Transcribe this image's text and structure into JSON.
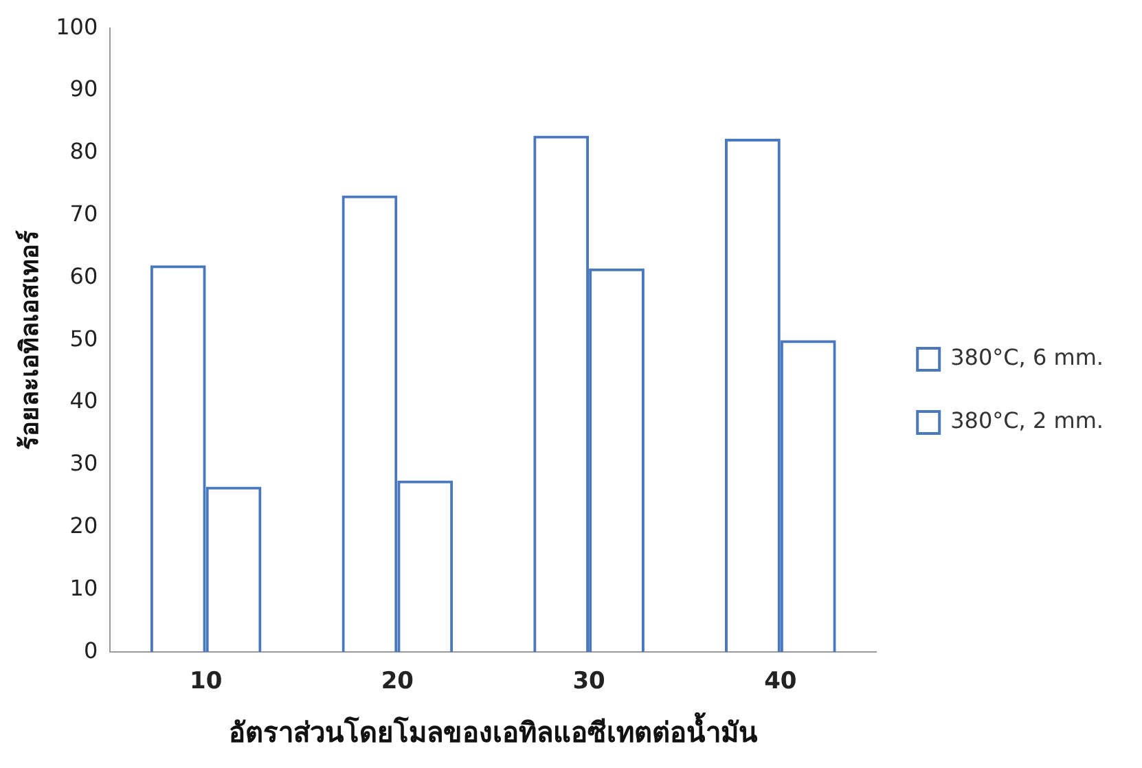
{
  "chart_data": {
    "type": "bar",
    "xlabel": "อัตราส่วนโดยโมลของเอทิลแอซีเทตต่อน้ำมัน",
    "ylabel": "ร้อยละเอทิลเอสเทอร์",
    "categories": [
      "10",
      "20",
      "30",
      "40"
    ],
    "series": [
      {
        "name": "380°C, 6 mm.",
        "color": "#4a78bd",
        "values": [
          62,
          73.2,
          82.8,
          82.3
        ]
      },
      {
        "name": "380°C, 2 mm.",
        "color": "#4a78bd",
        "values": [
          26.5,
          27.5,
          61.5,
          50
        ]
      }
    ],
    "ylim": [
      0,
      100
    ],
    "yticks": [
      0,
      10,
      20,
      30,
      40,
      50,
      60,
      70,
      80,
      90,
      100
    ],
    "grid": false,
    "legend": "right"
  }
}
